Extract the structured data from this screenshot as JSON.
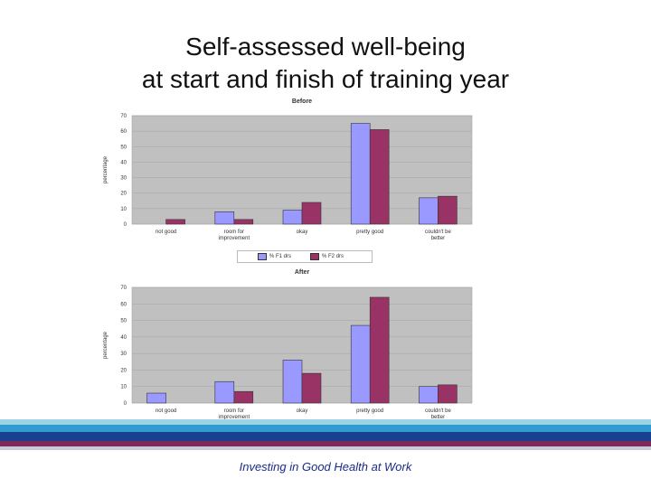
{
  "title": {
    "line1": "Self-assessed well-being",
    "line2": "at start and finish of training year"
  },
  "footer": {
    "text": "Investing in Good Health at Work",
    "band_colors": [
      "#9ad3e6",
      "#2f9bd0",
      "#1b3f8f",
      "#7b2a5a",
      "#c8c8d8"
    ]
  },
  "legend": {
    "items": [
      {
        "label": "% F1 drs",
        "color": "#9999ff"
      },
      {
        "label": "% F2 drs",
        "color": "#993366"
      }
    ]
  },
  "chart_data": [
    {
      "type": "bar",
      "title": "Before",
      "ylabel": "percentage",
      "ylim": [
        0,
        70
      ],
      "yticks": [
        0,
        10,
        20,
        30,
        40,
        50,
        60,
        70
      ],
      "categories": [
        "not good",
        "room for improvement",
        "okay",
        "pretty good",
        "couldn't be better"
      ],
      "category_lines": [
        [
          "not good"
        ],
        [
          "room for",
          "improvement"
        ],
        [
          "okay"
        ],
        [
          "pretty good"
        ],
        [
          "couldn't be",
          "better"
        ]
      ],
      "series": [
        {
          "name": "% F1 drs",
          "color": "#9999ff",
          "values": [
            0,
            8,
            9,
            65,
            17
          ]
        },
        {
          "name": "% F2 drs",
          "color": "#993366",
          "values": [
            3,
            3,
            14,
            61,
            18
          ]
        }
      ],
      "plot_bg": "#c0c0c0",
      "grid": true
    },
    {
      "type": "bar",
      "title": "After",
      "ylabel": "percentage",
      "ylim": [
        0,
        70
      ],
      "yticks": [
        0,
        10,
        20,
        30,
        40,
        50,
        60,
        70
      ],
      "categories": [
        "not good",
        "room for improvement",
        "okay",
        "pretty good",
        "couldn't be better"
      ],
      "category_lines": [
        [
          "not good"
        ],
        [
          "room for",
          "improvement"
        ],
        [
          "okay"
        ],
        [
          "pretty good"
        ],
        [
          "couldn't be",
          "better"
        ]
      ],
      "series": [
        {
          "name": "% F1 drs",
          "color": "#9999ff",
          "values": [
            6,
            13,
            26,
            47,
            10
          ]
        },
        {
          "name": "% F2 drs",
          "color": "#993366",
          "values": [
            0,
            7,
            18,
            64,
            11
          ]
        }
      ],
      "plot_bg": "#c0c0c0",
      "grid": true
    }
  ]
}
